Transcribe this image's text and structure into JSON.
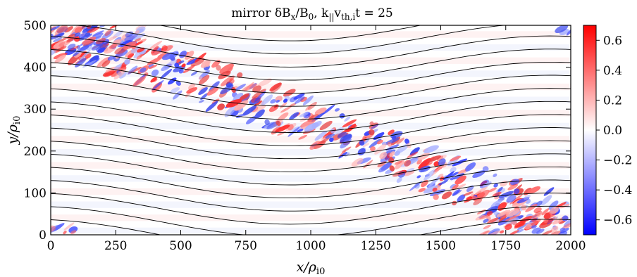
{
  "chart_data": {
    "type": "heatmap",
    "title": "mirror δB",
    "title_parts": {
      "prefix": "mirror δB",
      "sub1": "x",
      "mid": "/B",
      "sub2": "0",
      "mid2": ", k",
      "sub3": "||",
      "mid3": "v",
      "sub4": "th,i",
      "suffix": "t = 25"
    },
    "xlabel": "x/ρ",
    "xlabel_sub": "i0",
    "ylabel": "y/ρ",
    "ylabel_sub": "i0",
    "xlim": [
      0,
      2000
    ],
    "ylim": [
      0,
      500
    ],
    "x_ticks": [
      "0",
      "250",
      "500",
      "750",
      "1000",
      "1250",
      "1500",
      "1750",
      "2000"
    ],
    "x_tick_values": [
      0,
      250,
      500,
      750,
      1000,
      1250,
      1500,
      1750,
      2000
    ],
    "y_ticks": [
      "0",
      "100",
      "200",
      "300",
      "400",
      "500"
    ],
    "y_tick_values": [
      0,
      100,
      200,
      300,
      400,
      500
    ],
    "colorbar": {
      "range": [
        -0.7,
        0.7
      ],
      "ticks": [
        "0.6",
        "0.4",
        "0.2",
        "0.0",
        "−0.2",
        "−0.4",
        "−0.6"
      ],
      "tick_values": [
        0.6,
        0.4,
        0.2,
        0.0,
        -0.2,
        -0.4,
        -0.6
      ],
      "colormap": "bwr",
      "colors": {
        "low": "#0000ff",
        "mid": "#ffffff",
        "high": "#ff0000"
      }
    },
    "field_lines": {
      "count": 17,
      "spacing": 31.25,
      "amplitude": 45,
      "period": 2000
    },
    "turbulent_band": {
      "path_points": [
        [
          0,
          480
        ],
        [
          250,
          430
        ],
        [
          500,
          385
        ],
        [
          750,
          330
        ],
        [
          1000,
          270
        ],
        [
          1250,
          210
        ],
        [
          1500,
          140
        ],
        [
          1750,
          85
        ],
        [
          2000,
          30
        ]
      ],
      "width": 55
    }
  }
}
